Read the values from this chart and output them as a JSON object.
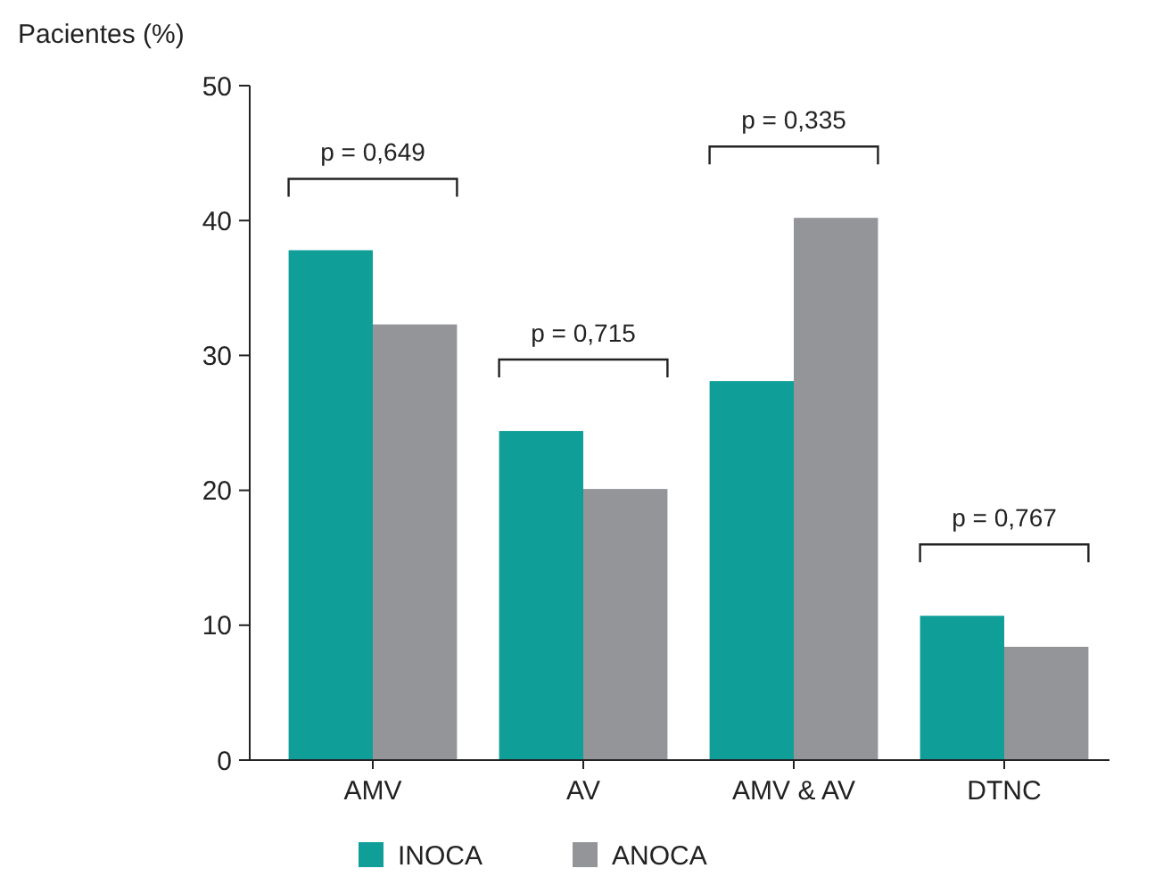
{
  "chart_data": {
    "type": "bar",
    "ylabel": "Pacientes (%)",
    "categories": [
      "AMV",
      "AV",
      "AMV & AV",
      "DTNC"
    ],
    "series": [
      {
        "name": "INOCA",
        "color": "#109e99",
        "values": [
          37.8,
          24.4,
          28.1,
          10.7
        ]
      },
      {
        "name": "ANOCA",
        "color": "#939598",
        "values": [
          32.3,
          20.1,
          40.2,
          8.4
        ]
      }
    ],
    "ylim": [
      0,
      50
    ],
    "yticks": [
      0,
      10,
      20,
      30,
      40,
      50
    ],
    "grid": false,
    "legend": "bottom",
    "annotations": [
      "p = 0,649",
      "p = 0,715",
      "p = 0,335",
      "p = 0,767"
    ]
  }
}
